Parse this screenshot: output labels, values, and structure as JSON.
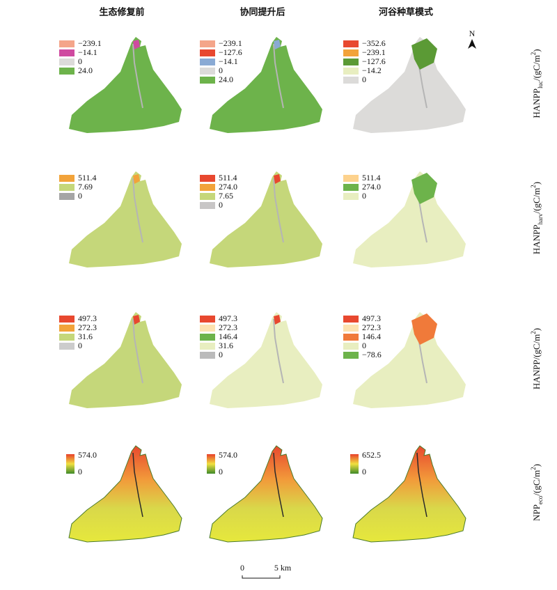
{
  "columns": [
    "生态修复前",
    "协同提升后",
    "河谷种草模式"
  ],
  "rows": [
    {
      "label": {
        "main": "HANPP",
        "sub": "luc",
        "unit": "/(gC/m",
        "sup": "2",
        "close": ")"
      },
      "panels": [
        {
          "legend": [
            {
              "label": "−239.1",
              "color": "#f4a58a"
            },
            {
              "label": "−14.1",
              "color": "#cf4aa0"
            },
            {
              "label": "0",
              "color": "#dcdbd9"
            },
            {
              "label": "24.0",
              "color": "#6db34b"
            }
          ]
        },
        {
          "legend": [
            {
              "label": "−239.1",
              "color": "#f4a58a"
            },
            {
              "label": "−127.6",
              "color": "#e8482f"
            },
            {
              "label": "−14.1",
              "color": "#8aaad4"
            },
            {
              "label": "0",
              "color": "#dcdbd9"
            },
            {
              "label": "24.0",
              "color": "#6db34b"
            }
          ]
        },
        {
          "legend": [
            {
              "label": "−352.6",
              "color": "#e8482f"
            },
            {
              "label": "−239.1",
              "color": "#f2a33a"
            },
            {
              "label": "−127.6",
              "color": "#5b9a35"
            },
            {
              "label": "−14.2",
              "color": "#e8eec0"
            },
            {
              "label": "0",
              "color": "#dcdbd9"
            }
          ]
        }
      ]
    },
    {
      "label": {
        "main": "HANPP",
        "sub": "harv",
        "unit": "/(gC/m",
        "sup": "2",
        "close": ")"
      },
      "panels": [
        {
          "legend": [
            {
              "label": "511.4",
              "color": "#f2a33a"
            },
            {
              "label": "7.69",
              "color": "#c5d77a"
            },
            {
              "label": "0",
              "color": "#a5a5a5"
            }
          ]
        },
        {
          "legend": [
            {
              "label": "511.4",
              "color": "#e8482f"
            },
            {
              "label": "274.0",
              "color": "#f2a33a"
            },
            {
              "label": "7.65",
              "color": "#c5d77a"
            },
            {
              "label": "0",
              "color": "#c8c6c6"
            }
          ]
        },
        {
          "legend": [
            {
              "label": "511.4",
              "color": "#fdd28d"
            },
            {
              "label": "274.0",
              "color": "#6db34b"
            },
            {
              "label": "0",
              "color": "#e8eec0"
            }
          ]
        }
      ]
    },
    {
      "label": {
        "main": "HANPP",
        "unit": "/(gC/m",
        "sup": "2",
        "close": ")"
      },
      "panels": [
        {
          "legend": [
            {
              "label": "497.3",
              "color": "#e8482f"
            },
            {
              "label": "272.3",
              "color": "#f2a33a"
            },
            {
              "label": "31.6",
              "color": "#c5d77a"
            },
            {
              "label": "0",
              "color": "#cccccc"
            }
          ]
        },
        {
          "legend": [
            {
              "label": "497.3",
              "color": "#e8482f"
            },
            {
              "label": "272.3",
              "color": "#fde2b0"
            },
            {
              "label": "146.4",
              "color": "#6db34b"
            },
            {
              "label": "31.6",
              "color": "#e8eec0"
            },
            {
              "label": "0",
              "color": "#bbbbbb"
            }
          ]
        },
        {
          "legend": [
            {
              "label": "497.3",
              "color": "#e8482f"
            },
            {
              "label": "272.3",
              "color": "#fde2b0"
            },
            {
              "label": "146.4",
              "color": "#f07a3a"
            },
            {
              "label": "0",
              "color": "#e8eec0"
            },
            {
              "label": "−78.6",
              "color": "#6db34b"
            }
          ]
        }
      ]
    },
    {
      "label": {
        "main": "NPP",
        "sub": "eco",
        "unit": "/(gC/m",
        "sup": "2",
        "close": ")"
      },
      "panels": [
        {
          "gradient": {
            "max": "574.0",
            "min": "0"
          }
        },
        {
          "gradient": {
            "max": "574.0",
            "min": "0"
          }
        },
        {
          "gradient": {
            "max": "652.5",
            "min": "0"
          }
        }
      ]
    }
  ],
  "north": "N",
  "scale_bar": {
    "start": "0",
    "end": "5 km"
  }
}
